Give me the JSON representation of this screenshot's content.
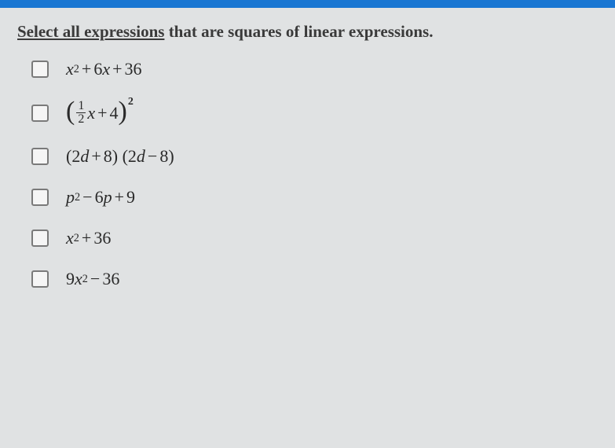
{
  "colors": {
    "topbar": "#1976d2",
    "background": "#e0e2e3",
    "text": "#3a3a3a",
    "checkbox_border": "#7a7a7a"
  },
  "typography": {
    "question_fontsize": 21,
    "expression_fontsize": 22,
    "font_family": "Georgia, Times New Roman, serif"
  },
  "question": {
    "underlined": "Select all expressions",
    "rest": " that are squares of linear expressions."
  },
  "options": [
    {
      "var1": "x",
      "exp1": "2",
      "op1": "+",
      "coef2": "6",
      "var2": "x",
      "op2": "+",
      "const": "36"
    },
    {
      "frac_num": "1",
      "frac_den": "2",
      "var": "x",
      "op": "+",
      "const": "4",
      "outer_exp": "2"
    },
    {
      "coef1": "2",
      "var1": "d",
      "op1": "+",
      "c1": "8",
      "coef2": "2",
      "var2": "d",
      "op2": "−",
      "c2": "8"
    },
    {
      "var1": "p",
      "exp1": "2",
      "op1": "−",
      "coef2": "6",
      "var2": "p",
      "op2": "+",
      "const": "9"
    },
    {
      "var1": "x",
      "exp1": "2",
      "op1": "+",
      "const": "36"
    },
    {
      "coef1": "9",
      "var1": "x",
      "exp1": "2",
      "op1": "−",
      "const": "36"
    }
  ]
}
